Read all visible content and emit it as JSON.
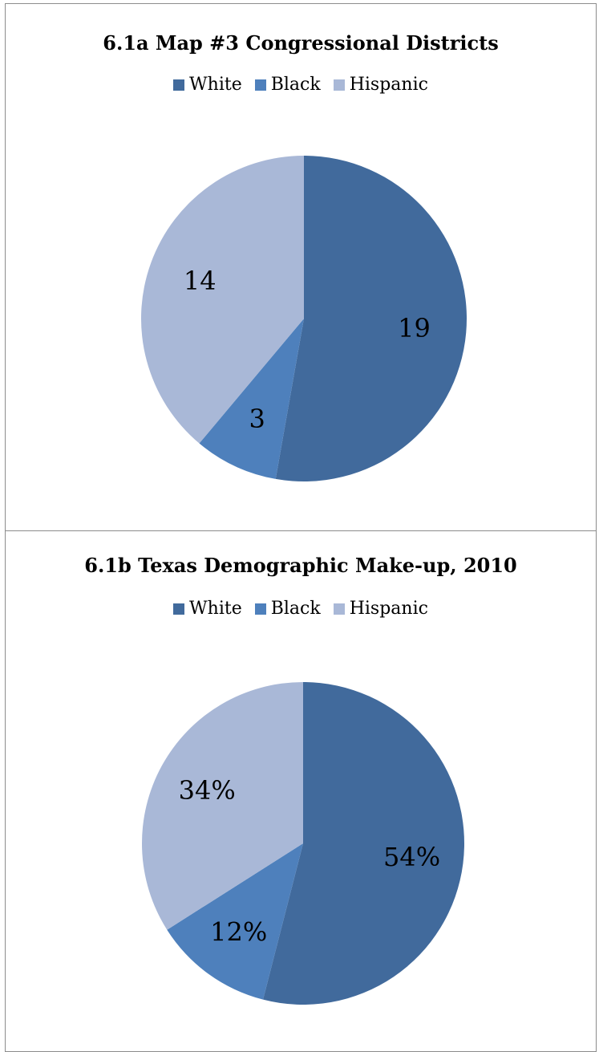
{
  "chart_data": [
    {
      "type": "pie",
      "title": "6.1a Map #3 Congressional Districts",
      "categories": [
        "White",
        "Black",
        "Hispanic"
      ],
      "values": [
        19,
        3,
        14
      ],
      "labels": [
        "19",
        "3",
        "14"
      ],
      "colors": [
        "#416A9C",
        "#4E80BC",
        "#A9B8D7"
      ],
      "legend_position": "top"
    },
    {
      "type": "pie",
      "title": "6.1b Texas Demographic Make-up, 2010",
      "categories": [
        "White",
        "Black",
        "Hispanic"
      ],
      "values": [
        54,
        12,
        34
      ],
      "labels": [
        "54%",
        "12%",
        "34%"
      ],
      "colors": [
        "#416A9C",
        "#4E80BC",
        "#A9B8D7"
      ],
      "legend_position": "top"
    }
  ]
}
